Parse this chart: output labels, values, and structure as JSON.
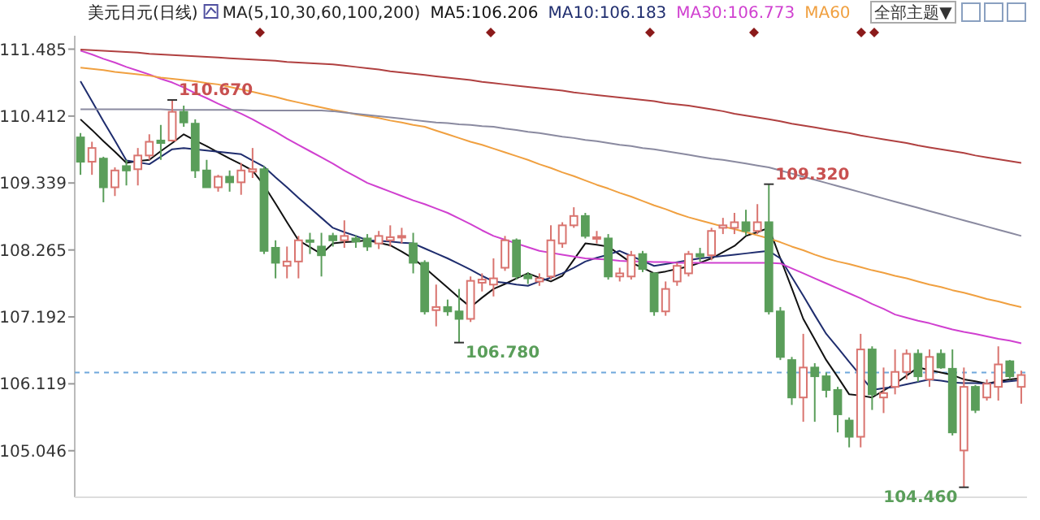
{
  "chart_data": {
    "type": "candlestick",
    "title": "美元日元(日线)",
    "subtitle": "MA(5,10,30,60,100,200)",
    "categories": [
      null,
      null,
      null,
      null,
      null,
      null,
      null,
      null,
      null,
      null,
      null,
      null,
      null,
      null,
      null,
      null,
      null,
      null,
      null,
      null,
      null,
      null,
      null,
      null,
      null,
      null,
      null,
      null,
      null,
      null,
      null,
      null,
      null,
      null,
      null,
      null,
      null,
      null,
      null,
      null,
      null,
      null,
      null,
      null,
      null,
      null,
      null,
      null,
      null,
      null,
      null,
      null,
      null,
      null,
      null,
      null,
      null,
      null,
      null,
      null,
      null,
      null,
      null,
      null,
      null,
      null,
      null,
      null,
      null,
      null,
      null,
      null,
      null,
      null,
      null,
      null,
      null,
      null,
      null,
      null,
      null,
      null,
      null
    ],
    "ohlc": [
      [
        110.07,
        110.14,
        109.47,
        109.68
      ],
      [
        109.68,
        110.0,
        109.47,
        109.9
      ],
      [
        109.73,
        109.76,
        109.03,
        109.27
      ],
      [
        109.27,
        109.59,
        109.13,
        109.54
      ],
      [
        109.61,
        109.71,
        109.3,
        109.54
      ],
      [
        109.56,
        109.9,
        109.3,
        109.78
      ],
      [
        109.78,
        110.12,
        109.71,
        110.0
      ],
      [
        110.02,
        110.27,
        109.71,
        109.98
      ],
      [
        110.02,
        110.67,
        110.0,
        110.48
      ],
      [
        110.48,
        110.58,
        110.24,
        110.31
      ],
      [
        110.29,
        110.36,
        109.42,
        109.54
      ],
      [
        109.54,
        109.71,
        109.27,
        109.27
      ],
      [
        109.27,
        109.47,
        109.2,
        109.44
      ],
      [
        109.44,
        109.54,
        109.2,
        109.35
      ],
      [
        109.35,
        109.66,
        109.15,
        109.54
      ],
      [
        109.52,
        109.9,
        109.42,
        109.56
      ],
      [
        109.56,
        109.61,
        108.2,
        108.25
      ],
      [
        108.3,
        108.42,
        107.81,
        108.06
      ],
      [
        108.01,
        108.32,
        107.81,
        108.08
      ],
      [
        108.08,
        108.49,
        107.81,
        108.42
      ],
      [
        108.42,
        108.54,
        108.2,
        108.4
      ],
      [
        108.32,
        108.54,
        107.84,
        108.18
      ],
      [
        108.49,
        108.54,
        108.32,
        108.42
      ],
      [
        108.42,
        108.74,
        108.3,
        108.49
      ],
      [
        108.45,
        108.5,
        108.3,
        108.4
      ],
      [
        108.45,
        108.52,
        108.25,
        108.32
      ],
      [
        108.37,
        108.57,
        108.28,
        108.49
      ],
      [
        108.42,
        108.66,
        108.32,
        108.47
      ],
      [
        108.47,
        108.62,
        108.37,
        108.49
      ],
      [
        108.37,
        108.54,
        107.89,
        108.06
      ],
      [
        108.06,
        108.1,
        107.23,
        107.28
      ],
      [
        107.3,
        107.71,
        107.04,
        107.35
      ],
      [
        107.35,
        107.47,
        107.21,
        107.28
      ],
      [
        107.28,
        107.64,
        106.78,
        107.16
      ],
      [
        107.16,
        107.84,
        107.11,
        107.77
      ],
      [
        107.74,
        107.89,
        107.6,
        107.79
      ],
      [
        107.71,
        108.13,
        107.52,
        107.81
      ],
      [
        107.98,
        108.49,
        107.93,
        108.42
      ],
      [
        108.42,
        108.45,
        107.79,
        107.84
      ],
      [
        107.86,
        107.91,
        107.72,
        107.81
      ],
      [
        107.76,
        107.89,
        107.69,
        107.81
      ],
      [
        107.84,
        108.66,
        107.79,
        108.42
      ],
      [
        108.37,
        108.71,
        108.3,
        108.66
      ],
      [
        108.66,
        108.95,
        108.62,
        108.81
      ],
      [
        108.81,
        108.86,
        108.45,
        108.49
      ],
      [
        108.45,
        108.57,
        108.37,
        108.47
      ],
      [
        108.45,
        108.52,
        107.79,
        107.84
      ],
      [
        107.84,
        107.98,
        107.76,
        107.89
      ],
      [
        107.84,
        108.25,
        107.79,
        108.18
      ],
      [
        108.2,
        108.25,
        107.91,
        107.96
      ],
      [
        107.89,
        107.91,
        107.21,
        107.28
      ],
      [
        107.28,
        107.76,
        107.21,
        107.64
      ],
      [
        107.76,
        108.06,
        107.69,
        108.01
      ],
      [
        107.89,
        108.25,
        107.84,
        108.2
      ],
      [
        108.2,
        108.3,
        108.08,
        108.16
      ],
      [
        108.18,
        108.62,
        108.1,
        108.57
      ],
      [
        108.62,
        108.78,
        108.52,
        108.66
      ],
      [
        108.62,
        108.86,
        108.52,
        108.71
      ],
      [
        108.71,
        108.91,
        108.5,
        108.57
      ],
      [
        108.57,
        109.0,
        108.52,
        108.71
      ],
      [
        108.71,
        109.32,
        107.23,
        107.28
      ],
      [
        107.28,
        107.35,
        106.5,
        106.55
      ],
      [
        106.5,
        106.55,
        105.78,
        105.9
      ],
      [
        105.9,
        106.92,
        105.51,
        106.38
      ],
      [
        106.38,
        106.45,
        105.51,
        106.24
      ],
      [
        106.24,
        106.3,
        105.9,
        106.02
      ],
      [
        106.02,
        106.07,
        105.34,
        105.63
      ],
      [
        105.53,
        105.58,
        105.1,
        105.27
      ],
      [
        105.27,
        106.92,
        105.1,
        106.67
      ],
      [
        106.67,
        106.72,
        105.7,
        105.95
      ],
      [
        105.9,
        106.38,
        105.65,
        105.97
      ],
      [
        106.07,
        106.67,
        105.95,
        106.31
      ],
      [
        106.31,
        106.67,
        106.19,
        106.6
      ],
      [
        106.6,
        106.67,
        106.15,
        106.24
      ],
      [
        106.19,
        106.67,
        106.07,
        106.55
      ],
      [
        106.6,
        106.67,
        106.36,
        106.38
      ],
      [
        106.36,
        106.67,
        105.29,
        105.34
      ],
      [
        105.05,
        106.38,
        104.46,
        106.07
      ],
      [
        106.07,
        106.1,
        105.65,
        105.7
      ],
      [
        105.9,
        106.19,
        105.85,
        106.12
      ],
      [
        106.07,
        106.72,
        105.85,
        106.43
      ],
      [
        106.48,
        106.5,
        106.19,
        106.24
      ],
      [
        106.07,
        106.33,
        105.8,
        106.26
      ]
    ],
    "colors": [
      "#5a9e5a",
      "#d9746f",
      "#5a9e5a",
      "#d9746f",
      "#5a9e5a",
      "#d9746f",
      "#d9746f",
      "#5a9e5a",
      "#d9746f",
      "#5a9e5a",
      "#5a9e5a",
      "#5a9e5a",
      "#d9746f",
      "#5a9e5a",
      "#d9746f",
      "#d9746f",
      "#5a9e5a",
      "#5a9e5a",
      "#d9746f",
      "#d9746f",
      "#5a9e5a",
      "#5a9e5a",
      "#5a9e5a",
      "#d9746f",
      "#5a9e5a",
      "#5a9e5a",
      "#d9746f",
      "#d9746f",
      "#d9746f",
      "#5a9e5a",
      "#5a9e5a",
      "#d9746f",
      "#5a9e5a",
      "#5a9e5a",
      "#d9746f",
      "#d9746f",
      "#d9746f",
      "#d9746f",
      "#5a9e5a",
      "#5a9e5a",
      "#d9746f",
      "#d9746f",
      "#d9746f",
      "#d9746f",
      "#5a9e5a",
      "#d9746f",
      "#5a9e5a",
      "#d9746f",
      "#d9746f",
      "#5a9e5a",
      "#5a9e5a",
      "#d9746f",
      "#d9746f",
      "#d9746f",
      "#5a9e5a",
      "#d9746f",
      "#d9746f",
      "#d9746f",
      "#5a9e5a",
      "#d9746f",
      "#5a9e5a",
      "#5a9e5a",
      "#5a9e5a",
      "#d9746f",
      "#5a9e5a",
      "#5a9e5a",
      "#5a9e5a",
      "#5a9e5a",
      "#d9746f",
      "#5a9e5a",
      "#d9746f",
      "#d9746f",
      "#d9746f",
      "#5a9e5a",
      "#d9746f",
      "#5a9e5a",
      "#5a9e5a",
      "#d9746f",
      "#5a9e5a",
      "#d9746f",
      "#d9746f",
      "#5a9e5a",
      "#d9746f"
    ],
    "series": [
      {
        "type": "line",
        "name": "MA5:106.206",
        "color": "#111111",
        "values": [
          110.36,
          110.19,
          110.01,
          109.84,
          109.66,
          109.69,
          109.71,
          109.85,
          109.98,
          110.12,
          110.02,
          109.93,
          109.83,
          109.73,
          109.64,
          109.54,
          109.3,
          109.01,
          108.71,
          108.42,
          108.31,
          108.2,
          108.37,
          108.39,
          108.4,
          108.42,
          108.38,
          108.34,
          108.24,
          108.13,
          107.98,
          107.82,
          107.66,
          107.5,
          107.35,
          107.5,
          107.64,
          107.72,
          107.81,
          107.89,
          107.82,
          107.76,
          107.85,
          108.11,
          108.37,
          108.35,
          108.32,
          108.19,
          108.06,
          107.98,
          107.89,
          107.92,
          107.96,
          108.0,
          108.06,
          108.13,
          108.23,
          108.33,
          108.49,
          108.55,
          108.62,
          108.13,
          107.65,
          107.16,
          106.83,
          106.5,
          106.23,
          105.95,
          105.93,
          105.9,
          106.01,
          106.12,
          106.25,
          106.38,
          106.34,
          106.3,
          106.26,
          106.19,
          106.16,
          106.12,
          106.16,
          106.19,
          106.21
        ]
      },
      {
        "type": "line",
        "name": "MA10:106.183",
        "color": "#1f2d6e",
        "values": [
          110.97,
          110.65,
          110.33,
          110.02,
          109.7,
          109.67,
          109.64,
          109.76,
          109.88,
          109.9,
          109.88,
          109.86,
          109.84,
          109.82,
          109.8,
          109.7,
          109.6,
          109.43,
          109.27,
          109.1,
          108.94,
          108.78,
          108.62,
          108.55,
          108.49,
          108.42,
          108.41,
          108.4,
          108.38,
          108.37,
          108.29,
          108.21,
          108.13,
          108.04,
          107.95,
          107.85,
          107.76,
          107.74,
          107.71,
          107.69,
          107.76,
          107.82,
          107.89,
          107.98,
          108.08,
          108.14,
          108.19,
          108.25,
          108.17,
          108.09,
          108.01,
          108.04,
          108.07,
          108.1,
          108.13,
          108.15,
          108.17,
          108.19,
          108.21,
          108.23,
          108.25,
          108.13,
          107.83,
          107.53,
          107.22,
          106.92,
          106.7,
          106.47,
          106.25,
          106.02,
          106.05,
          106.07,
          106.11,
          106.15,
          106.19,
          106.17,
          106.14,
          106.13,
          106.13,
          106.12,
          106.14,
          106.16,
          106.18
        ]
      },
      {
        "type": "line",
        "name": "MA30:106.773",
        "color": "#d040d0",
        "values": [
          111.46,
          111.4,
          111.33,
          111.27,
          111.2,
          111.14,
          111.08,
          111.01,
          110.95,
          110.87,
          110.78,
          110.7,
          110.61,
          110.53,
          110.45,
          110.36,
          110.26,
          110.16,
          110.05,
          109.95,
          109.85,
          109.75,
          109.65,
          109.54,
          109.44,
          109.34,
          109.27,
          109.2,
          109.13,
          109.06,
          109.0,
          108.93,
          108.86,
          108.77,
          108.68,
          108.58,
          108.49,
          108.43,
          108.37,
          108.31,
          108.25,
          108.22,
          108.19,
          108.16,
          108.13,
          108.12,
          108.11,
          108.09,
          108.08,
          108.08,
          108.07,
          108.07,
          108.06,
          108.06,
          108.06,
          108.06,
          108.06,
          108.06,
          108.06,
          108.06,
          108.06,
          108.05,
          107.97,
          107.89,
          107.81,
          107.73,
          107.65,
          107.57,
          107.49,
          107.4,
          107.32,
          107.23,
          107.18,
          107.13,
          107.09,
          107.04,
          106.99,
          106.95,
          106.92,
          106.88,
          106.84,
          106.81,
          106.77
        ]
      },
      {
        "type": "line",
        "name": "MA60",
        "color": "#f0a040",
        "values": [
          111.19,
          111.17,
          111.15,
          111.12,
          111.1,
          111.08,
          111.06,
          111.03,
          111.01,
          110.99,
          110.97,
          110.94,
          110.92,
          110.88,
          110.84,
          110.8,
          110.76,
          110.72,
          110.67,
          110.63,
          110.59,
          110.55,
          110.51,
          110.48,
          110.44,
          110.41,
          110.38,
          110.34,
          110.31,
          110.27,
          110.24,
          110.18,
          110.12,
          110.06,
          110.0,
          109.95,
          109.89,
          109.83,
          109.77,
          109.71,
          109.64,
          109.58,
          109.51,
          109.45,
          109.38,
          109.31,
          109.25,
          109.18,
          109.12,
          109.05,
          108.98,
          108.92,
          108.85,
          108.79,
          108.74,
          108.69,
          108.64,
          108.6,
          108.55,
          108.5,
          108.45,
          108.39,
          108.32,
          108.26,
          108.19,
          108.13,
          108.08,
          108.04,
          107.99,
          107.94,
          107.9,
          107.85,
          107.81,
          107.76,
          107.71,
          107.67,
          107.62,
          107.58,
          107.53,
          107.48,
          107.44,
          107.39,
          107.35
        ]
      },
      {
        "type": "line",
        "color": "#8a8aa0",
        "values": [
          110.52,
          110.52,
          110.52,
          110.52,
          110.52,
          110.52,
          110.52,
          110.52,
          110.51,
          110.51,
          110.51,
          110.51,
          110.51,
          110.51,
          110.51,
          110.5,
          110.5,
          110.5,
          110.5,
          110.5,
          110.5,
          110.5,
          110.49,
          110.47,
          110.45,
          110.43,
          110.41,
          110.39,
          110.37,
          110.35,
          110.33,
          110.31,
          110.3,
          110.28,
          110.27,
          110.25,
          110.24,
          110.21,
          110.19,
          110.16,
          110.14,
          110.11,
          110.08,
          110.06,
          110.03,
          110.01,
          109.98,
          109.95,
          109.93,
          109.9,
          109.88,
          109.85,
          109.82,
          109.79,
          109.76,
          109.73,
          109.71,
          109.68,
          109.65,
          109.62,
          109.59,
          109.54,
          109.49,
          109.44,
          109.39,
          109.34,
          109.29,
          109.24,
          109.19,
          109.14,
          109.09,
          109.04,
          108.99,
          108.94,
          108.89,
          108.84,
          108.79,
          108.74,
          108.69,
          108.64,
          108.59,
          108.54,
          108.49
        ]
      },
      {
        "type": "line",
        "color": "#b04040",
        "values": [
          111.48,
          111.47,
          111.46,
          111.45,
          111.44,
          111.43,
          111.41,
          111.4,
          111.39,
          111.38,
          111.37,
          111.36,
          111.35,
          111.34,
          111.33,
          111.32,
          111.31,
          111.3,
          111.28,
          111.27,
          111.26,
          111.25,
          111.24,
          111.22,
          111.2,
          111.18,
          111.16,
          111.13,
          111.11,
          111.09,
          111.07,
          111.05,
          111.03,
          111.01,
          110.99,
          110.96,
          110.94,
          110.92,
          110.9,
          110.88,
          110.86,
          110.84,
          110.82,
          110.79,
          110.77,
          110.75,
          110.73,
          110.71,
          110.69,
          110.67,
          110.65,
          110.62,
          110.6,
          110.58,
          110.55,
          110.52,
          110.49,
          110.45,
          110.42,
          110.39,
          110.36,
          110.33,
          110.29,
          110.26,
          110.23,
          110.2,
          110.17,
          110.14,
          110.1,
          110.07,
          110.04,
          110.01,
          109.98,
          109.94,
          109.91,
          109.88,
          109.85,
          109.82,
          109.78,
          109.75,
          109.72,
          109.69,
          109.66
        ]
      }
    ],
    "ylim": [
      104.3,
      111.7
    ],
    "yticks": [
      105.046,
      106.119,
      107.192,
      108.265,
      109.339,
      110.412,
      111.485
    ],
    "ref_lines": [
      {
        "axis": "y",
        "value": 106.3,
        "color": "#6fa8dc",
        "line_style": "dashed"
      }
    ],
    "annotations": [
      "全部主题▼",
      {
        "text": "110.670",
        "y": 110.67
      },
      {
        "text": "109.320",
        "y": 109.32
      },
      "106.780",
      "104.460"
    ],
    "legend": "top",
    "grid": false,
    "tick_labels": "y"
  }
}
